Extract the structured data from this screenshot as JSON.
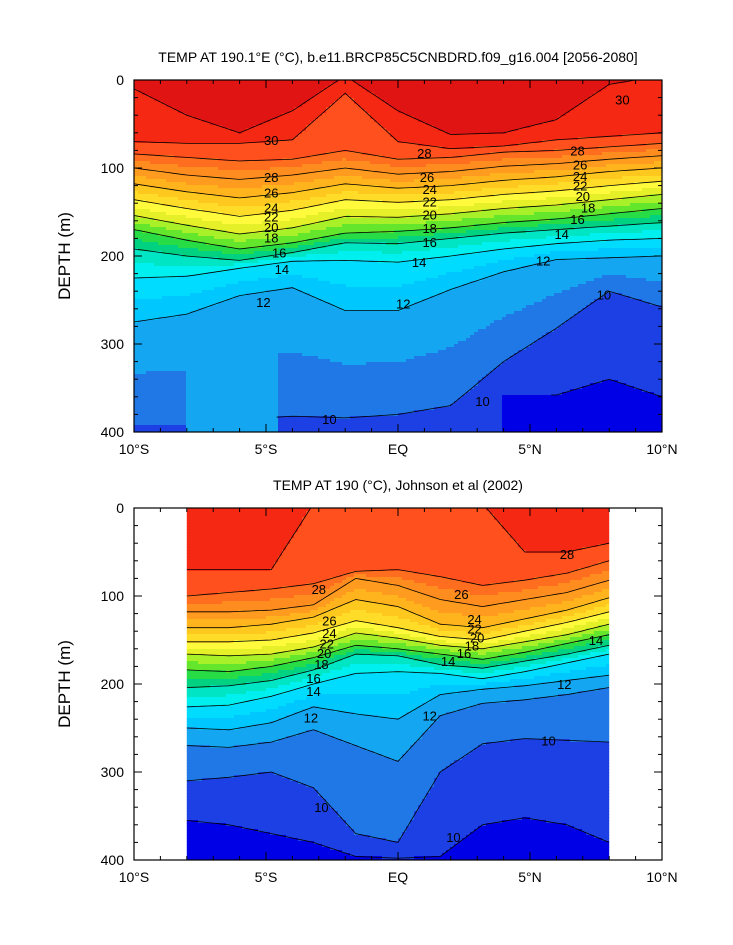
{
  "chart_data": [
    {
      "type": "heatmap",
      "title": "TEMP AT 190.1°E (°C), b.e11.BRCP85C5CNBDRD.f09_g16.004 [2056-2080]",
      "ylabel": "DEPTH (m)",
      "xlabel": "",
      "xlim": [
        -10,
        10
      ],
      "ylim": [
        0,
        400
      ],
      "y_inverted": true,
      "x_ticks": [
        {
          "value": -10,
          "label": "10°S"
        },
        {
          "value": -5,
          "label": "5°S"
        },
        {
          "value": 0,
          "label": "EQ"
        },
        {
          "value": 5,
          "label": "5°N"
        },
        {
          "value": 10,
          "label": "10°N"
        }
      ],
      "y_ticks": [
        {
          "value": 0,
          "label": "0"
        },
        {
          "value": 100,
          "label": "100"
        },
        {
          "value": 200,
          "label": "200"
        },
        {
          "value": 300,
          "label": "300"
        },
        {
          "value": 400,
          "label": "400"
        }
      ],
      "contour_interval": 1,
      "contour_lines": [
        {
          "level": 30,
          "depth": [
            10,
            40,
            60,
            35,
            -5,
            35,
            62,
            60,
            45,
            5,
            -5
          ]
        },
        {
          "level": 29,
          "depth": [
            70,
            72,
            72,
            68,
            15,
            70,
            78,
            75,
            68,
            64,
            60
          ]
        },
        {
          "level": 28,
          "depth": [
            84,
            88,
            92,
            90,
            80,
            90,
            88,
            82,
            80,
            76,
            72
          ]
        },
        {
          "level": 26,
          "depth": [
            100,
            108,
            113,
            108,
            100,
            107,
            104,
            98,
            95,
            90,
            86
          ]
        },
        {
          "level": 24,
          "depth": [
            118,
            127,
            134,
            128,
            118,
            123,
            120,
            114,
            110,
            104,
            100
          ]
        },
        {
          "level": 22,
          "depth": [
            136,
            146,
            155,
            148,
            136,
            139,
            136,
            130,
            126,
            120,
            115
          ]
        },
        {
          "level": 20,
          "depth": [
            154,
            165,
            175,
            168,
            155,
            156,
            152,
            146,
            142,
            136,
            130
          ]
        },
        {
          "level": 18,
          "depth": [
            170,
            182,
            192,
            185,
            174,
            172,
            168,
            162,
            158,
            152,
            146
          ]
        },
        {
          "level": 16,
          "depth": [
            192,
            200,
            205,
            196,
            185,
            186,
            180,
            174,
            170,
            166,
            162
          ]
        },
        {
          "level": 14,
          "depth": [
            225,
            223,
            214,
            206,
            205,
            207,
            200,
            192,
            186,
            182,
            180
          ]
        },
        {
          "level": 12,
          "depth": [
            275,
            266,
            245,
            236,
            262,
            262,
            238,
            218,
            204,
            202,
            200
          ]
        },
        {
          "level": 10,
          "depth": [
            null,
            392,
            386,
            382,
            384,
            380,
            370,
            320,
            282,
            240,
            258
          ],
          "x_start": -4.6
        },
        {
          "level": 9,
          "depth": [
            null,
            null,
            null,
            null,
            null,
            null,
            null,
            null,
            358,
            340,
            360
          ],
          "x_start": 5.8
        }
      ],
      "line_labels": [
        {
          "text": "30",
          "x": -4.8,
          "y": 68
        },
        {
          "text": "30",
          "x": 8.5,
          "y": 22
        },
        {
          "text": "28",
          "x": -4.8,
          "y": 110
        },
        {
          "text": "26",
          "x": -4.8,
          "y": 128
        },
        {
          "text": "24",
          "x": -4.8,
          "y": 145
        },
        {
          "text": "22",
          "x": -4.8,
          "y": 155
        },
        {
          "text": "20",
          "x": -4.8,
          "y": 167
        },
        {
          "text": "18",
          "x": -4.8,
          "y": 179
        },
        {
          "text": "16",
          "x": -4.5,
          "y": 196
        },
        {
          "text": "14",
          "x": -4.4,
          "y": 215
        },
        {
          "text": "12",
          "x": -5.1,
          "y": 252
        },
        {
          "text": "10",
          "x": -2.6,
          "y": 385
        },
        {
          "text": "28",
          "x": 1.0,
          "y": 83
        },
        {
          "text": "26",
          "x": 1.1,
          "y": 110
        },
        {
          "text": "24",
          "x": 1.2,
          "y": 124
        },
        {
          "text": "22",
          "x": 1.2,
          "y": 138
        },
        {
          "text": "20",
          "x": 1.2,
          "y": 153
        },
        {
          "text": "18",
          "x": 1.2,
          "y": 168
        },
        {
          "text": "16",
          "x": 1.2,
          "y": 184
        },
        {
          "text": "14",
          "x": 0.8,
          "y": 207
        },
        {
          "text": "12",
          "x": 0.2,
          "y": 254
        },
        {
          "text": "10",
          "x": 3.2,
          "y": 365
        },
        {
          "text": "28",
          "x": 6.8,
          "y": 80
        },
        {
          "text": "26",
          "x": 6.9,
          "y": 96
        },
        {
          "text": "24",
          "x": 6.9,
          "y": 109
        },
        {
          "text": "22",
          "x": 6.9,
          "y": 120
        },
        {
          "text": "20",
          "x": 7.0,
          "y": 132
        },
        {
          "text": "18",
          "x": 7.2,
          "y": 145
        },
        {
          "text": "16",
          "x": 6.8,
          "y": 158
        },
        {
          "text": "14",
          "x": 6.2,
          "y": 175
        },
        {
          "text": "12",
          "x": 5.5,
          "y": 205
        },
        {
          "text": "10",
          "x": 7.8,
          "y": 244
        }
      ]
    },
    {
      "type": "heatmap",
      "title": "TEMP AT 190 (°C), Johnson et al (2002)",
      "ylabel": "DEPTH (m)",
      "xlabel": "",
      "xlim": [
        -10,
        10
      ],
      "ylim": [
        0,
        400
      ],
      "y_inverted": true,
      "data_xlim": [
        -8,
        8
      ],
      "x_ticks": [
        {
          "value": -10,
          "label": "10°S"
        },
        {
          "value": -5,
          "label": "5°S"
        },
        {
          "value": 0,
          "label": "EQ"
        },
        {
          "value": 5,
          "label": "5°N"
        },
        {
          "value": 10,
          "label": "10°N"
        }
      ],
      "y_ticks": [
        {
          "value": 0,
          "label": "0"
        },
        {
          "value": 100,
          "label": "100"
        },
        {
          "value": 200,
          "label": "200"
        },
        {
          "value": 300,
          "label": "300"
        },
        {
          "value": 400,
          "label": "400"
        }
      ],
      "contour_interval": 1,
      "contour_lines": [
        {
          "level": 29,
          "depth": [
            70,
            70,
            70,
            -5,
            -5,
            -5,
            -5,
            -5,
            50,
            50,
            40
          ],
          "x_start": -8
        },
        {
          "level": 28,
          "depth": [
            100,
            96,
            92,
            86,
            72,
            70,
            78,
            88,
            82,
            74,
            60
          ],
          "x_start": -8
        },
        {
          "level": 26,
          "depth": [
            118,
            118,
            116,
            110,
            80,
            88,
            104,
            112,
            104,
            96,
            82
          ],
          "x_start": -8
        },
        {
          "level": 24,
          "depth": [
            136,
            136,
            132,
            124,
            104,
            112,
            132,
            136,
            126,
            116,
            102
          ],
          "x_start": -8
        },
        {
          "level": 22,
          "depth": [
            152,
            152,
            150,
            142,
            128,
            136,
            146,
            150,
            140,
            130,
            118
          ],
          "x_start": -8
        },
        {
          "level": 20,
          "depth": [
            166,
            168,
            166,
            158,
            142,
            148,
            156,
            160,
            152,
            144,
            132
          ],
          "x_start": -8
        },
        {
          "level": 18,
          "depth": [
            184,
            186,
            180,
            170,
            156,
            160,
            166,
            172,
            164,
            154,
            144
          ],
          "x_start": -8
        },
        {
          "level": 16,
          "depth": [
            204,
            202,
            196,
            184,
            166,
            168,
            178,
            182,
            174,
            166,
            156
          ],
          "x_start": -8
        },
        {
          "level": 14,
          "depth": [
            226,
            224,
            214,
            200,
            188,
            186,
            188,
            194,
            186,
            176,
            166
          ],
          "x_start": -8
        },
        {
          "level": 12,
          "depth": [
            250,
            252,
            244,
            226,
            234,
            240,
            212,
            206,
            202,
            196,
            190
          ],
          "x_start": -8
        },
        {
          "level": 11,
          "depth": [
            270,
            272,
            266,
            252,
            270,
            288,
            236,
            222,
            218,
            212,
            204
          ],
          "x_start": -8
        },
        {
          "level": 10,
          "depth": [
            310,
            306,
            300,
            318,
            370,
            380,
            300,
            268,
            262,
            264,
            266
          ],
          "x_start": -8
        },
        {
          "level": 9,
          "depth": [
            355,
            360,
            370,
            380,
            396,
            398,
            396,
            360,
            352,
            360,
            380
          ],
          "x_start": -8
        }
      ],
      "line_labels": [
        {
          "text": "28",
          "x": -3.0,
          "y": 92
        },
        {
          "text": "26",
          "x": -2.6,
          "y": 128
        },
        {
          "text": "24",
          "x": -2.6,
          "y": 142
        },
        {
          "text": "22",
          "x": -2.7,
          "y": 154
        },
        {
          "text": "20",
          "x": -2.8,
          "y": 165
        },
        {
          "text": "18",
          "x": -2.9,
          "y": 177
        },
        {
          "text": "16",
          "x": -3.2,
          "y": 193
        },
        {
          "text": "14",
          "x": -3.2,
          "y": 208
        },
        {
          "text": "12",
          "x": -3.3,
          "y": 238
        },
        {
          "text": "10",
          "x": -2.9,
          "y": 340
        },
        {
          "text": "26",
          "x": 2.4,
          "y": 98
        },
        {
          "text": "24",
          "x": 2.9,
          "y": 126
        },
        {
          "text": "22",
          "x": 2.9,
          "y": 137
        },
        {
          "text": "20",
          "x": 3.0,
          "y": 147
        },
        {
          "text": "18",
          "x": 2.8,
          "y": 156
        },
        {
          "text": "16",
          "x": 2.5,
          "y": 165
        },
        {
          "text": "14",
          "x": 1.9,
          "y": 174
        },
        {
          "text": "12",
          "x": 1.2,
          "y": 236
        },
        {
          "text": "10",
          "x": 2.1,
          "y": 374
        },
        {
          "text": "28",
          "x": 6.4,
          "y": 52
        },
        {
          "text": "14",
          "x": 7.5,
          "y": 150
        },
        {
          "text": "12",
          "x": 6.3,
          "y": 200
        },
        {
          "text": "10",
          "x": 5.7,
          "y": 264
        }
      ]
    }
  ],
  "palette": {
    "8": "#0000e6",
    "9": "#1c40e4",
    "10": "#1f78e6",
    "11": "#15a6f2",
    "12": "#00c8ff",
    "13": "#00dcff",
    "14": "#00f0f0",
    "15": "#00e6c4",
    "16": "#00d282",
    "17": "#28dc46",
    "18": "#64e62d",
    "19": "#a8f028",
    "20": "#e6f028",
    "21": "#fffa3c",
    "22": "#ffdc28",
    "23": "#ffc81e",
    "24": "#ffb41e",
    "25": "#ff9b1e",
    "26": "#ff8c1e",
    "27": "#ff6e1e",
    "28": "#ff501e",
    "29": "#f52814",
    "30": "#e11414",
    "31": "#c80a0a"
  }
}
